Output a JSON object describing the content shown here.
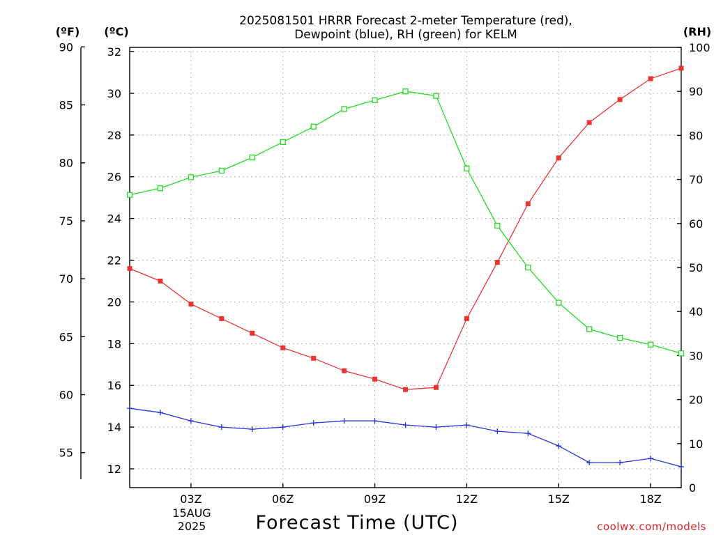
{
  "chart_data": {
    "type": "line",
    "title": "2025081501 HRRR Forecast 2-meter Temperature (red),",
    "title_line2": "Dewpoint (blue), RH (green) for KELM",
    "xlabel": "Forecast Time (UTC)",
    "x_ticks": [
      "03Z",
      "06Z",
      "09Z",
      "12Z",
      "15Z",
      "18Z"
    ],
    "x_date_day": "15AUG",
    "x_date_year": "2025",
    "x_hours": [
      1,
      2,
      3,
      4,
      5,
      6,
      7,
      8,
      9,
      10,
      11,
      12,
      13,
      14,
      15,
      16,
      17,
      18,
      19
    ],
    "unit_f": "(ºF)",
    "unit_c": "(ºC)",
    "unit_rh": "(RH)",
    "ylim_c": [
      11.1,
      32.2
    ],
    "yticks_c": [
      12,
      14,
      16,
      18,
      20,
      22,
      24,
      26,
      28,
      30,
      32
    ],
    "yticks_f": [
      55,
      60,
      65,
      70,
      75,
      80,
      85,
      90
    ],
    "ylim_rh": [
      0,
      100
    ],
    "yticks_rh": [
      0,
      10,
      20,
      30,
      40,
      50,
      60,
      70,
      80,
      90,
      100
    ],
    "grid": true,
    "series": [
      {
        "name": "Temperature",
        "color": "#ee3333",
        "axis": "c",
        "marker": "filled-square",
        "values": [
          21.6,
          21.0,
          19.9,
          19.2,
          18.5,
          17.8,
          17.3,
          16.7,
          16.3,
          15.8,
          15.9,
          19.2,
          21.9,
          24.7,
          26.9,
          28.6,
          29.7,
          30.7,
          31.2
        ]
      },
      {
        "name": "Dewpoint",
        "color": "#2233dd",
        "axis": "c",
        "marker": "plus",
        "values": [
          14.9,
          14.7,
          14.3,
          14.0,
          13.9,
          14.0,
          14.2,
          14.3,
          14.3,
          14.1,
          14.0,
          14.1,
          13.8,
          13.7,
          13.1,
          12.3,
          12.3,
          12.5,
          12.1
        ]
      },
      {
        "name": "RH",
        "color": "#22dd22",
        "axis": "rh",
        "marker": "open-square",
        "values": [
          66.5,
          68.0,
          70.5,
          72.0,
          75.0,
          78.5,
          82.0,
          86.0,
          88.0,
          90.0,
          89.0,
          72.5,
          59.5,
          50.0,
          42.0,
          36.0,
          34.0,
          32.5,
          30.5
        ]
      }
    ]
  },
  "credit": "coolwx.com/models"
}
